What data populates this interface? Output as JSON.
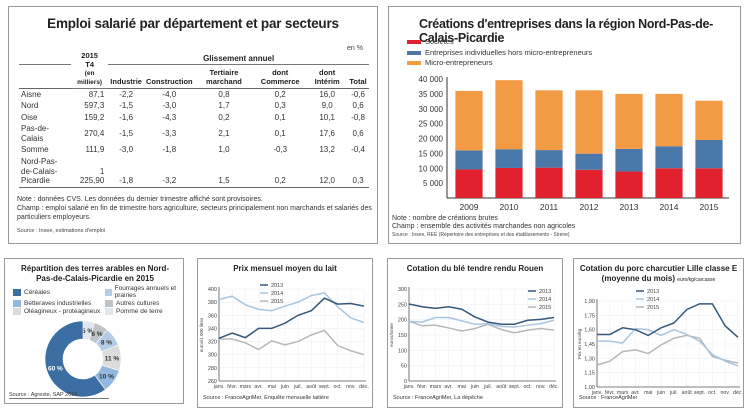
{
  "employment_table": {
    "title": "Emploi salarié par département et par secteurs",
    "unit": "en %",
    "header": {
      "col0": "",
      "col1_line1": "2015",
      "col1_line2": "T4",
      "col1_line3": "(en milliers)",
      "group": "Glissement annuel",
      "cols": [
        "Industrie",
        "Construction",
        "Tertiaire marchand",
        "dont Commerce",
        "dont Intérim",
        "Total"
      ]
    },
    "rows": [
      {
        "dept": "Aisne",
        "t4": "87,1",
        "values": [
          "-2,2",
          "-4,0",
          "0,8",
          "0,2",
          "16,0",
          "-0,6"
        ]
      },
      {
        "dept": "Nord",
        "t4": "597,3",
        "values": [
          "-1,5",
          "-3,0",
          "1,7",
          "0,3",
          "9,0",
          "0,6"
        ]
      },
      {
        "dept": "Oise",
        "t4": "159,2",
        "values": [
          "-1,6",
          "-4,3",
          "0,2",
          "0,1",
          "10,1",
          "-0,8"
        ]
      },
      {
        "dept": "Pas-de-Calais",
        "t4": "270,4",
        "values": [
          "-1,5",
          "-3,3",
          "2,1",
          "0,1",
          "17,6",
          "0,6"
        ]
      },
      {
        "dept": "Somme",
        "t4": "111,9",
        "values": [
          "-3,0",
          "-1,8",
          "1,0",
          "-0,3",
          "13,2",
          "-0,4"
        ]
      },
      {
        "dept": "Nord-Pas-de-Calais-Picardie",
        "t4": "1 225,90",
        "values": [
          "-1,8",
          "-3,2",
          "1,5",
          "0,2",
          "12,0",
          "0,3"
        ]
      }
    ],
    "note": "Note : données CVS. Les données du dernier trimestre affiché sont provisoires.",
    "champ": "Champ : emploi salarié en fin de trimestre hors agriculture, secteurs principalement non marchands et salariés des particuliers employeurs.",
    "source": "Source : Insee, estimations d'emploi"
  },
  "chart_data": [
    {
      "id": "creations",
      "type": "bar",
      "stacked": true,
      "title": "Créations d'entreprises dans la région Nord-Pas-de-Calais-Picardie",
      "categories": [
        "2009",
        "2010",
        "2011",
        "2012",
        "2013",
        "2014",
        "2015"
      ],
      "series": [
        {
          "name": "Sociétés",
          "color": "#e2212f",
          "values": [
            9600,
            10100,
            10200,
            9500,
            8900,
            10000,
            10000
          ]
        },
        {
          "name": "Entreprises individuelles hors micro-entrepreneurs",
          "color": "#4a79a9",
          "values": [
            6400,
            6300,
            5900,
            5400,
            7600,
            7400,
            9500
          ]
        },
        {
          "name": "Micro-entrepreneurs",
          "color": "#f39a45",
          "values": [
            20000,
            23200,
            20100,
            21300,
            18500,
            17600,
            13200
          ]
        }
      ],
      "ylim": [
        0,
        40000
      ],
      "yticks": [
        "5 000",
        "10 000",
        "15 000",
        "20 000",
        "25 000",
        "30 000",
        "35 000",
        "40 000"
      ],
      "legend": "top-left",
      "note": "Note : nombre de créations brutes",
      "champ": "Champ : ensemble des activités marchandes non agricoles",
      "source": "Source : Insee, REE (Répertoire des entreprises et des établissements - Sirene)"
    },
    {
      "id": "terres",
      "type": "pie",
      "donut": true,
      "title": "Répartition des terres arables en Nord-Pas-de-Calais-Picardie en 2015",
      "slices": [
        {
          "name": "Pomme de terre",
          "value": 5,
          "label": "5 %",
          "color": "#dfe6ee"
        },
        {
          "name": "Autres cultures",
          "value": 6,
          "label": "6 %",
          "color": "#bfc3c7"
        },
        {
          "name": "Fourrages annuels et prairies",
          "value": 8,
          "label": "8 %",
          "color": "#b4cde6"
        },
        {
          "name": "Oléagineux - protéagineux",
          "value": 11,
          "label": "11 %",
          "color": "#dcdcdc"
        },
        {
          "name": "Betteraves industrielles",
          "value": 10,
          "label": "10 %",
          "color": "#93b8df"
        },
        {
          "name": "Céréales",
          "value": 60,
          "label": "60 %",
          "color": "#3b6fa3"
        }
      ],
      "legend_order": [
        "Céréales",
        "Fourrages annuels et prairies",
        "Betteraves industrielles",
        "Autres cultures",
        "Oléagineux - protéagineux",
        "Pomme de terre"
      ],
      "source": "Source : Agreste, SAP 2015"
    },
    {
      "id": "lait",
      "type": "line",
      "title": "Prix mensuel moyen du lait",
      "ylabel": "euros/1 000 litres",
      "x": [
        "janv.",
        "févr.",
        "mars",
        "avr.",
        "mai",
        "juin",
        "juil.",
        "août",
        "sept.",
        "oct.",
        "nov.",
        "déc."
      ],
      "ylim": [
        260,
        400
      ],
      "yticks": [
        260,
        280,
        300,
        320,
        340,
        360,
        380,
        400
      ],
      "series": [
        {
          "name": "2013",
          "color": "#35577a",
          "values": [
            325,
            333,
            326,
            340,
            340,
            348,
            360,
            367,
            386,
            377,
            378,
            374
          ]
        },
        {
          "name": "2014",
          "color": "#a9c6e0",
          "values": [
            384,
            389,
            376,
            369,
            367,
            374,
            380,
            390,
            394,
            373,
            356,
            349
          ]
        },
        {
          "name": "2015",
          "color": "#b5b7b9",
          "values": [
            324,
            324,
            318,
            308,
            321,
            315,
            320,
            330,
            337,
            314,
            306,
            300
          ]
        }
      ],
      "legend": "top-center",
      "source": "Source : FranceAgriMer, Enquête mensuelle laitière"
    },
    {
      "id": "ble",
      "type": "line",
      "title": "Cotation du blé tendre rendu Rouen",
      "ylabel": "euros/tonne",
      "x": [
        "janv.",
        "févr.",
        "mars",
        "avr.",
        "mai",
        "juin",
        "juil.",
        "août",
        "sept.",
        "oct.",
        "nov.",
        "déc."
      ],
      "ylim": [
        0,
        300
      ],
      "yticks": [
        0,
        50,
        100,
        150,
        200,
        250,
        300
      ],
      "series": [
        {
          "name": "2013",
          "color": "#35577a",
          "values": [
            251,
            242,
            237,
            242,
            234,
            209,
            192,
            185,
            185,
            198,
            201,
            207
          ]
        },
        {
          "name": "2014",
          "color": "#a9c6e0",
          "values": [
            195,
            192,
            207,
            207,
            196,
            185,
            187,
            178,
            176,
            182,
            187,
            198
          ]
        },
        {
          "name": "2015",
          "color": "#b5b7b9",
          "values": [
            195,
            180,
            182,
            173,
            163,
            171,
            185,
            168,
            157,
            166,
            171,
            166
          ]
        }
      ],
      "legend": "top-right",
      "source": "Source : FranceAgriMer, La dépêche"
    },
    {
      "id": "porc",
      "type": "line",
      "title": "Cotation du porc charcutier Lille classe E",
      "subtitle": "(moyenne du mois)",
      "unit": "euro/kg/carcasse",
      "ylabel": "Prix en euro/kg",
      "x": [
        "janv.",
        "févr.",
        "mars",
        "avr.",
        "mai",
        "juin",
        "juil.",
        "août",
        "sept.",
        "oct.",
        "nov.",
        "déc."
      ],
      "ylim": [
        1.0,
        1.9
      ],
      "yticks": [
        "1,00",
        "1,15",
        "1,30",
        "1,45",
        "1,60",
        "1,75",
        "1,90"
      ],
      "series": [
        {
          "name": "2013",
          "color": "#35577a",
          "values": [
            1.55,
            1.55,
            1.62,
            1.6,
            1.54,
            1.62,
            1.67,
            1.81,
            1.87,
            1.87,
            1.64,
            1.52
          ]
        },
        {
          "name": "2014",
          "color": "#a9c6e0",
          "values": [
            1.48,
            1.48,
            1.46,
            1.61,
            1.6,
            1.54,
            1.6,
            1.55,
            1.48,
            1.34,
            1.27,
            1.22
          ]
        },
        {
          "name": "2015",
          "color": "#b5b7b9",
          "values": [
            1.23,
            1.27,
            1.37,
            1.39,
            1.35,
            1.44,
            1.51,
            1.54,
            1.51,
            1.32,
            1.28,
            1.25
          ]
        }
      ],
      "legend": "top-center",
      "source": "Source : FranceAgriMer"
    }
  ]
}
